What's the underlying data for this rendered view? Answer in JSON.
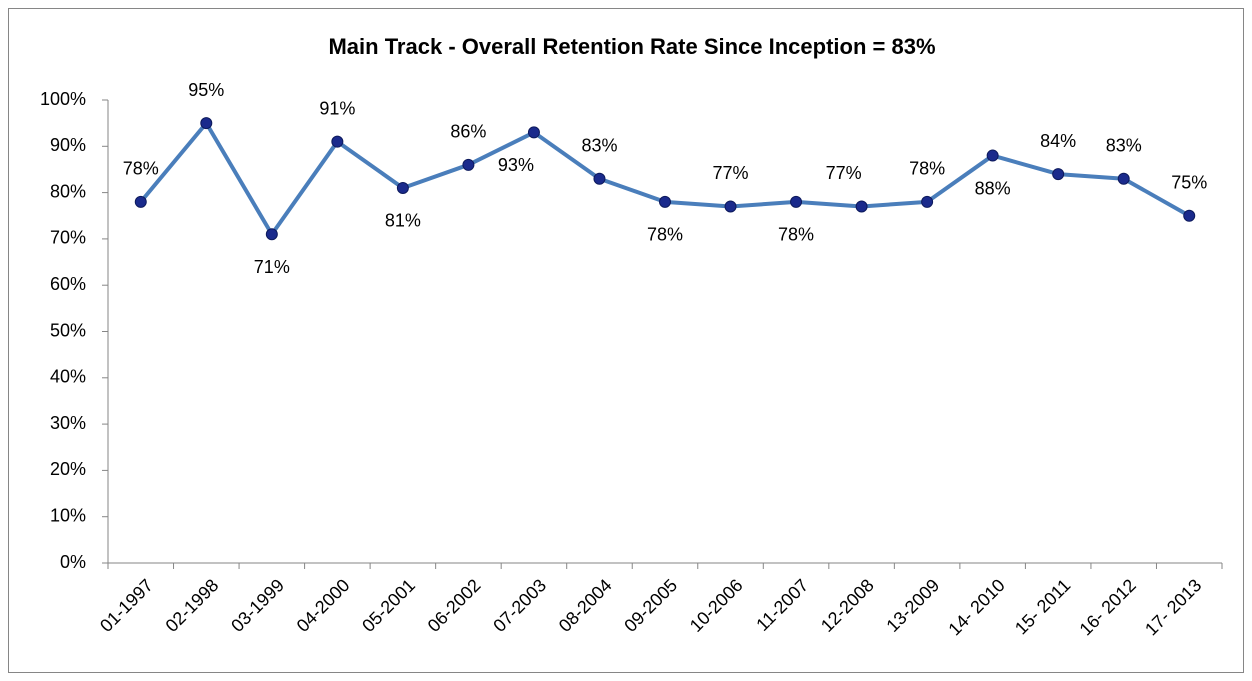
{
  "chart_data": {
    "type": "line",
    "title": "Main Track - Overall Retention Rate Since Inception = 83%",
    "categories": [
      "01-1997",
      "02-1998",
      "03-1999",
      "04-2000",
      "05-2001",
      "06-2002",
      "07-2003",
      "08-2004",
      "09-2005",
      "10-2006",
      "11-2007",
      "12-2008",
      "13-2009",
      "14- 2010",
      "15- 2011",
      "16- 2012",
      "17- 2013"
    ],
    "series": [
      {
        "name": "Retention Rate",
        "color": "#4a7ebb",
        "values": [
          78,
          95,
          71,
          91,
          81,
          86,
          93,
          83,
          78,
          77,
          78,
          77,
          78,
          88,
          84,
          83,
          75
        ],
        "value_labels": [
          "78%",
          "95%",
          "71%",
          "91%",
          "81%",
          "86%",
          "93%",
          "83%",
          "78%",
          "77%",
          "78%",
          "77%",
          "78%",
          "88%",
          "84%",
          "83%",
          "75%"
        ]
      }
    ],
    "marker_color": "#1a2a8c",
    "ylim": [
      0,
      100
    ],
    "yticks": [
      {
        "value": 0,
        "label": "0%"
      },
      {
        "value": 10,
        "label": "10%"
      },
      {
        "value": 20,
        "label": "20%"
      },
      {
        "value": 30,
        "label": "30%"
      },
      {
        "value": 40,
        "label": "40%"
      },
      {
        "value": 50,
        "label": "50%"
      },
      {
        "value": 60,
        "label": "60%"
      },
      {
        "value": 70,
        "label": "70%"
      },
      {
        "value": 80,
        "label": "80%"
      },
      {
        "value": 90,
        "label": "90%"
      },
      {
        "value": 100,
        "label": "100%"
      }
    ],
    "grid": false
  }
}
